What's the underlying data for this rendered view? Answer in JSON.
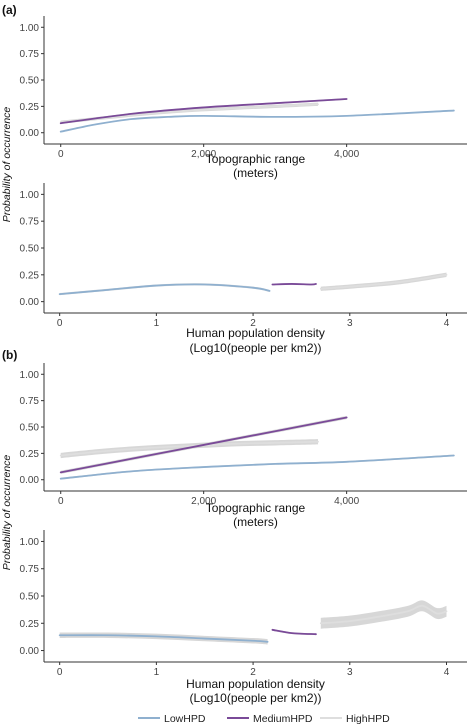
{
  "panels": [
    {
      "tag": "(a)"
    },
    {
      "tag": "(b)"
    }
  ],
  "colors": {
    "LowHPD": "#8fb0cf",
    "MediumHPD": "#7a4a98",
    "HighHPD": "#dedede",
    "ribbon": "#c9c9c9",
    "axis": "#333333"
  },
  "legend": {
    "items": [
      {
        "key": "LowHPD",
        "label": "LowHPD"
      },
      {
        "key": "MediumHPD",
        "label": "MediumHPD"
      },
      {
        "key": "HighHPD",
        "label": "HighHPD"
      }
    ]
  },
  "chart_data": [
    {
      "type": "line",
      "panel": "(a)",
      "xlabel": [
        "Topographic range",
        "(meters)"
      ],
      "ylabel": "Probability of occurrence",
      "xlim": [
        -150,
        5600
      ],
      "ylim": [
        -0.05,
        1.05
      ],
      "xticks": [
        0,
        2000,
        4000
      ],
      "xtick_labels": [
        "0",
        "2,000",
        "4,000"
      ],
      "yticks": [
        0,
        0.25,
        0.5,
        0.75,
        1
      ],
      "ytick_labels": [
        "0.00",
        "0.25",
        "0.50",
        "0.75",
        "1.00"
      ],
      "grid": false,
      "series": [
        {
          "name": "HighHPD",
          "band": 0.015,
          "x": [
            0,
            600,
            1200,
            1800,
            2400,
            3000,
            3600
          ],
          "y": [
            0.1,
            0.14,
            0.18,
            0.21,
            0.23,
            0.25,
            0.27
          ]
        },
        {
          "name": "LowHPD",
          "band": 0.006,
          "x": [
            0,
            500,
            1000,
            1500,
            2000,
            3000,
            4000,
            5500
          ],
          "y": [
            0.01,
            0.08,
            0.13,
            0.15,
            0.16,
            0.15,
            0.16,
            0.21
          ]
        },
        {
          "name": "MediumHPD",
          "band": 0.008,
          "x": [
            0,
            1000,
            2000,
            3000,
            4000
          ],
          "y": [
            0.09,
            0.18,
            0.24,
            0.28,
            0.32
          ]
        }
      ]
    },
    {
      "type": "line",
      "panel": "(a)",
      "xlabel": [
        "Human population density",
        "(Log10(people per km2))"
      ],
      "ylabel": "",
      "xlim": [
        -0.1,
        4.15
      ],
      "ylim": [
        -0.05,
        1.05
      ],
      "xticks": [
        0,
        1,
        2,
        3,
        4
      ],
      "xtick_labels": [
        "0",
        "1",
        "2",
        "3",
        "4"
      ],
      "yticks": [
        0,
        0.25,
        0.5,
        0.75,
        1
      ],
      "ytick_labels": [
        "0.00",
        "0.25",
        "0.50",
        "0.75",
        "1.00"
      ],
      "grid": false,
      "series": [
        {
          "name": "LowHPD",
          "band": 0.01,
          "x": [
            0,
            0.5,
            1,
            1.5,
            2,
            2.17
          ],
          "y": [
            0.07,
            0.11,
            0.15,
            0.16,
            0.13,
            0.1
          ]
        },
        {
          "name": "MediumHPD",
          "band": 0.006,
          "x": [
            2.2,
            2.4,
            2.6,
            2.65
          ],
          "y": [
            0.16,
            0.165,
            0.16,
            0.165
          ]
        },
        {
          "name": "HighHPD",
          "band": 0.02,
          "x": [
            2.7,
            3,
            3.5,
            4
          ],
          "y": [
            0.12,
            0.14,
            0.18,
            0.25
          ]
        }
      ]
    },
    {
      "type": "line",
      "panel": "(b)",
      "xlabel": [
        "Topographic range",
        "(meters)"
      ],
      "ylabel": "Probability of occurrence",
      "xlim": [
        -150,
        5600
      ],
      "ylim": [
        -0.05,
        1.05
      ],
      "xticks": [
        0,
        2000,
        4000
      ],
      "xtick_labels": [
        "0",
        "2,000",
        "4,000"
      ],
      "yticks": [
        0,
        0.25,
        0.5,
        0.75,
        1
      ],
      "ytick_labels": [
        "0.00",
        "0.25",
        "0.50",
        "0.75",
        "1.00"
      ],
      "grid": false,
      "series": [
        {
          "name": "HighHPD",
          "band": 0.025,
          "x": [
            0,
            600,
            1200,
            1800,
            2400,
            3000,
            3600
          ],
          "y": [
            0.23,
            0.27,
            0.3,
            0.32,
            0.34,
            0.35,
            0.36
          ]
        },
        {
          "name": "LowHPD",
          "band": 0.008,
          "x": [
            0,
            1000,
            2000,
            3000,
            4000,
            5500
          ],
          "y": [
            0.01,
            0.08,
            0.12,
            0.15,
            0.17,
            0.23
          ]
        },
        {
          "name": "MediumHPD",
          "band": 0.015,
          "x": [
            0,
            1000,
            2000,
            3000,
            4000
          ],
          "y": [
            0.07,
            0.2,
            0.33,
            0.46,
            0.59
          ]
        }
      ]
    },
    {
      "type": "line",
      "panel": "(b)",
      "xlabel": [
        "Human population density",
        "(Log10(people per km2))"
      ],
      "ylabel": "",
      "xlim": [
        -0.1,
        4.15
      ],
      "ylim": [
        -0.05,
        1.05
      ],
      "xticks": [
        0,
        1,
        2,
        3,
        4
      ],
      "xtick_labels": [
        "0",
        "1",
        "2",
        "3",
        "4"
      ],
      "yticks": [
        0,
        0.25,
        0.5,
        0.75,
        1
      ],
      "ytick_labels": [
        "0.00",
        "0.25",
        "0.50",
        "0.75",
        "1.00"
      ],
      "grid": false,
      "series": [
        {
          "name": "LowHPD",
          "band": 0.025,
          "x": [
            0,
            0.5,
            1,
            1.5,
            2,
            2.15
          ],
          "y": [
            0.14,
            0.14,
            0.13,
            0.11,
            0.09,
            0.08
          ]
        },
        {
          "name": "MediumHPD",
          "band": 0.008,
          "x": [
            2.2,
            2.4,
            2.65
          ],
          "y": [
            0.19,
            0.16,
            0.15
          ]
        },
        {
          "name": "HighHPD",
          "band": 0.05,
          "x": [
            2.7,
            3,
            3.3,
            3.6,
            3.75,
            3.9,
            4
          ],
          "y": [
            0.25,
            0.27,
            0.31,
            0.36,
            0.41,
            0.34,
            0.36
          ]
        }
      ]
    }
  ]
}
